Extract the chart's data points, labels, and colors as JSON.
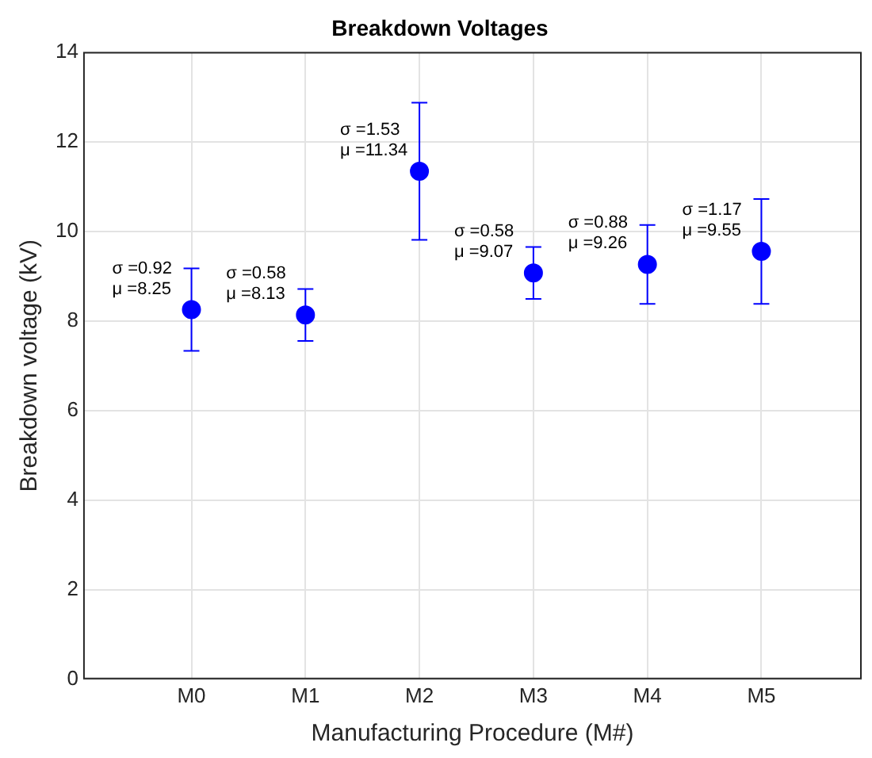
{
  "chart_data": {
    "type": "scatter",
    "title": "Breakdown Voltages",
    "xlabel": "Manufacturing Procedure (M#)",
    "ylabel": "Breakdown voltage (kV)",
    "categories": [
      "M0",
      "M1",
      "M2",
      "M3",
      "M4",
      "M5"
    ],
    "series": [
      {
        "color": "#0000ff",
        "values": [
          8.25,
          8.13,
          11.34,
          9.07,
          9.26,
          9.55
        ],
        "errors": [
          0.92,
          0.58,
          1.53,
          0.58,
          0.88,
          1.17
        ]
      }
    ],
    "ylim": [
      0,
      14
    ],
    "yticks": [
      0,
      2,
      4,
      6,
      8,
      10,
      12,
      14
    ],
    "grid": true,
    "legend": false,
    "marker": "circle",
    "annotations": [
      {
        "text": "σ =0.92\nμ =8.25",
        "x": "M0",
        "y": 8.25
      },
      {
        "text": "σ =0.58\nμ =8.13",
        "x": "M1",
        "y": 8.13
      },
      {
        "text": "σ =1.53\nμ =11.34",
        "x": "M2",
        "y": 11.34
      },
      {
        "text": "σ =0.58\nμ =9.07",
        "x": "M3",
        "y": 9.07
      },
      {
        "text": "σ =0.88\nμ =9.26",
        "x": "M4",
        "y": 9.26
      },
      {
        "text": "σ =1.17\nμ =9.55",
        "x": "M5",
        "y": 9.55
      }
    ]
  }
}
